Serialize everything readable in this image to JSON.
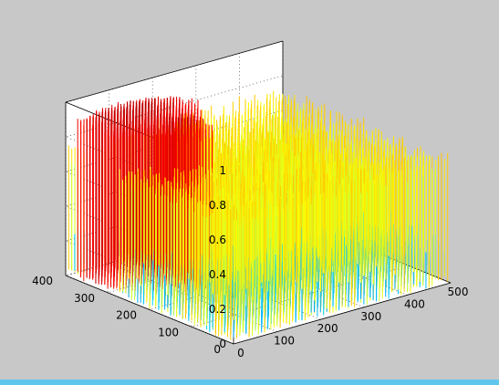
{
  "chart_data": {
    "type": "surface3d",
    "title": "",
    "xlabel": "",
    "ylabel": "",
    "zlabel": "",
    "xlim": [
      0,
      500
    ],
    "ylim": [
      0,
      400
    ],
    "zlim": [
      0,
      1
    ],
    "x_ticks": [
      0,
      100,
      200,
      300,
      400,
      500
    ],
    "y_ticks": [
      0,
      100,
      200,
      300,
      400
    ],
    "z_ticks": [
      0,
      0.2,
      0.4,
      0.6,
      0.8,
      1
    ],
    "x_tick_labels": [
      "0",
      "100",
      "200",
      "300",
      "400",
      "500"
    ],
    "y_tick_labels": [
      "0",
      "100",
      "200",
      "300",
      "400"
    ],
    "z_tick_labels": [
      "0",
      "0.2",
      "0.4",
      "0.6",
      "0.8",
      "1"
    ],
    "grid": true,
    "colormap": "jet",
    "colors": {
      "figure_bg": "#c8c8c8",
      "axes_bg": "#ffffff",
      "low": "#1ab4e8",
      "mid": "#2ee0d0",
      "high": "#e03010"
    },
    "description_levels": {
      "baseline_z": 0.2,
      "spike_z": 0.7,
      "plateau_z": 0.85,
      "peak_z": 1.0
    }
  }
}
